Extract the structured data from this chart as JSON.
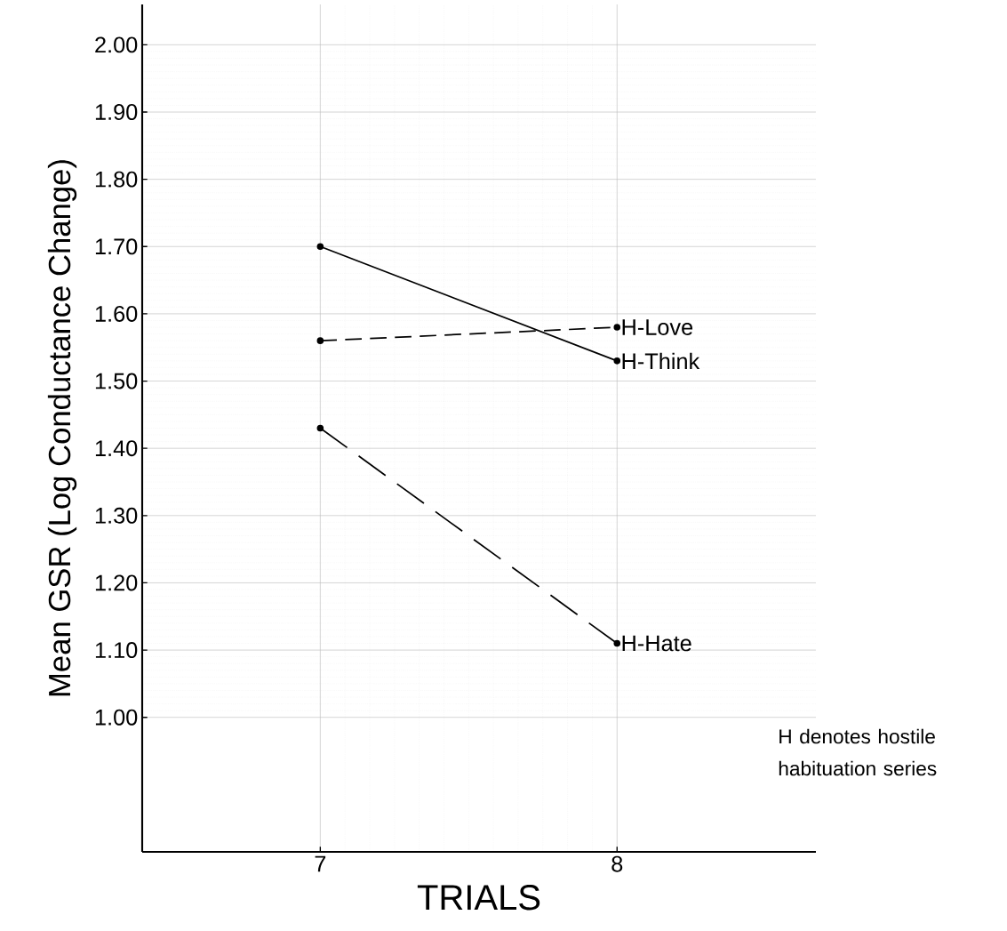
{
  "chart_data": {
    "type": "line",
    "x": [
      7,
      8
    ],
    "xlabel": "TRIALS",
    "ylabel": "Mean GSR (Log Conductance Change)",
    "series": [
      {
        "name": "H-Think",
        "color": "#000000",
        "values": [
          1.7,
          1.53
        ],
        "line_style": "solid"
      },
      {
        "name": "H-Love",
        "color": "#000000",
        "values": [
          1.56,
          1.58
        ],
        "line_style": "dashed"
      },
      {
        "name": "H-Hate",
        "color": "#000000",
        "values": [
          1.43,
          1.11
        ],
        "line_style": "dashed"
      }
    ],
    "xlim": [
      6.4,
      8.67
    ],
    "ylim": [
      0.8,
      2.06
    ],
    "xticks": [
      7,
      8
    ],
    "yticks": [
      {
        "value": 1,
        "label": "1.00"
      },
      {
        "value": 1.1,
        "label": "1.10"
      },
      {
        "value": 1.2,
        "label": "1.20"
      },
      {
        "value": 1.3,
        "label": "1.30"
      },
      {
        "value": 1.4,
        "label": "1.40"
      },
      {
        "value": 1.5,
        "label": "1.50"
      },
      {
        "value": 1.6,
        "label": "1.60"
      },
      {
        "value": 1.7,
        "label": "1.70"
      },
      {
        "value": 1.8,
        "label": "1.80"
      },
      {
        "value": 1.9,
        "label": "1.90"
      },
      {
        "value": 2,
        "label": "2.00"
      }
    ],
    "annotations": [
      "H denotes hostile habituation series"
    ],
    "grid": true,
    "marker": "circle"
  }
}
